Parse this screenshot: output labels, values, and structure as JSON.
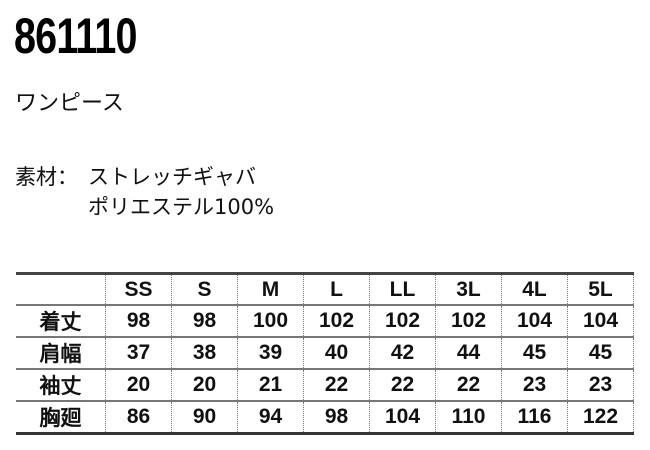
{
  "product": {
    "code": "861110",
    "name": "ワンピース",
    "material_label": "素材：",
    "material_lines": [
      "ストレッチギャバ",
      "ポリエステル100%"
    ]
  },
  "size_table": {
    "headers": [
      "",
      "SS",
      "S",
      "M",
      "L",
      "LL",
      "3L",
      "4L",
      "5L"
    ],
    "rows": [
      {
        "label": "着丈",
        "values": [
          "98",
          "98",
          "100",
          "102",
          "102",
          "102",
          "104",
          "104"
        ]
      },
      {
        "label": "肩幅",
        "values": [
          "37",
          "38",
          "39",
          "40",
          "42",
          "44",
          "45",
          "45"
        ]
      },
      {
        "label": "袖丈",
        "values": [
          "20",
          "20",
          "21",
          "22",
          "22",
          "22",
          "23",
          "23"
        ]
      },
      {
        "label": "胸廻",
        "values": [
          "86",
          "90",
          "94",
          "98",
          "104",
          "110",
          "116",
          "122"
        ]
      }
    ]
  }
}
